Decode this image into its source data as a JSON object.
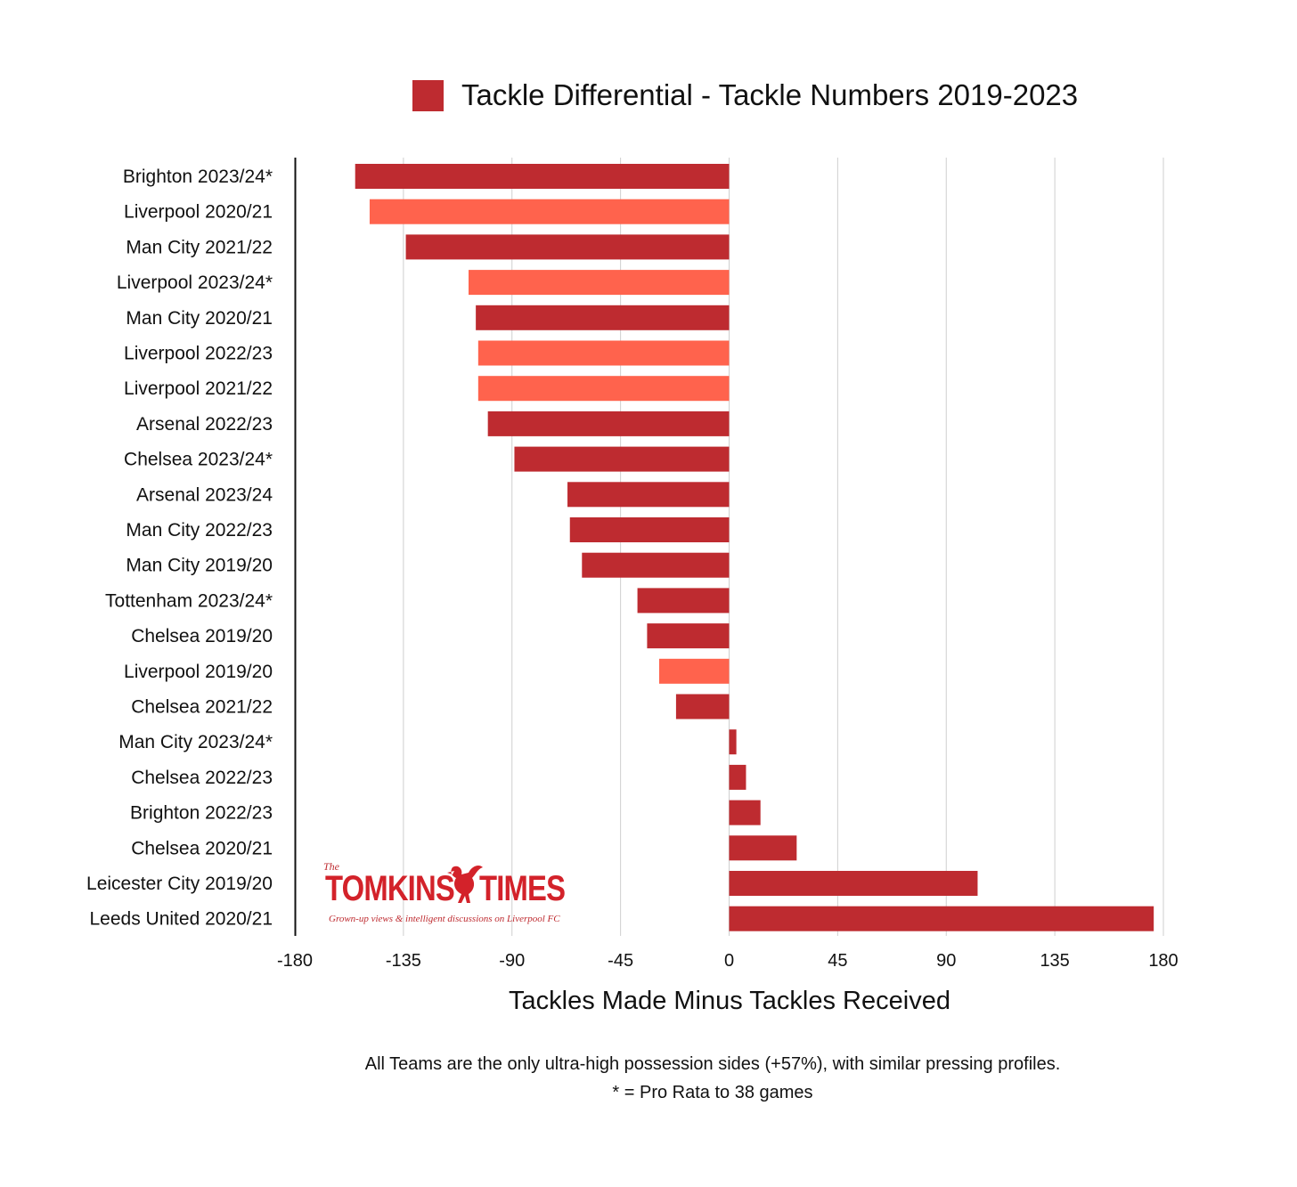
{
  "chart_data": {
    "type": "bar",
    "orientation": "horizontal",
    "legend": {
      "label": "Tackle Differential - Tackle Numbers 2019-2023",
      "color": "#BE2B30",
      "placement": "top"
    },
    "xlabel": "Tackles Made Minus Tackles Received",
    "ylabel": "",
    "xlim": [
      -180,
      180
    ],
    "xticks": [
      -180,
      -135,
      -90,
      -45,
      0,
      45,
      90,
      135,
      180
    ],
    "grid": "vertical",
    "colors": {
      "default": "#BE2B30",
      "liverpool": "#FF634D"
    },
    "categories": [
      "Brighton 2023/24*",
      "Liverpool 2020/21",
      "Man City 2021/22",
      "Liverpool 2023/24*",
      "Man City 2020/21",
      "Liverpool 2022/23",
      "Liverpool 2021/22",
      "Arsenal 2022/23",
      "Chelsea 2023/24*",
      "Arsenal 2023/24",
      "Man City 2022/23",
      "Man City 2019/20",
      "Tottenham 2023/24*",
      "Chelsea 2019/20",
      "Liverpool 2019/20",
      "Chelsea 2021/22",
      "Man City 2023/24*",
      "Chelsea 2022/23",
      "Brighton 2022/23",
      "Chelsea 2020/21",
      "Leicester City 2019/20",
      "Leeds United 2020/21"
    ],
    "values": [
      -155,
      -149,
      -134,
      -108,
      -105,
      -104,
      -104,
      -100,
      -89,
      -67,
      -66,
      -61,
      -38,
      -34,
      -29,
      -22,
      3,
      7,
      13,
      28,
      103,
      176
    ],
    "highlight": [
      false,
      true,
      false,
      true,
      false,
      true,
      true,
      false,
      false,
      false,
      false,
      false,
      false,
      false,
      true,
      false,
      false,
      false,
      false,
      false,
      false,
      false
    ]
  },
  "footnotes": {
    "line1": "All Teams are the only ultra-high possession sides (+57%), with similar pressing profiles.",
    "line2": "* = Pro Rata to 38 games"
  },
  "logo": {
    "prefix": "The",
    "name_left": "TOMKINS",
    "name_right": "TIMES",
    "tagline": "Grown-up views & intelligent discussions on Liverpool FC",
    "icon": "liver-bird-icon"
  }
}
